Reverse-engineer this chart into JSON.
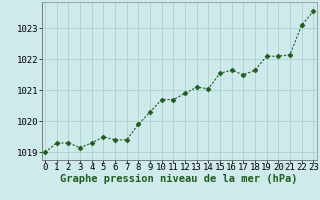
{
  "x": [
    0,
    1,
    2,
    3,
    4,
    5,
    6,
    7,
    8,
    9,
    10,
    11,
    12,
    13,
    14,
    15,
    16,
    17,
    18,
    19,
    20,
    21,
    22,
    23
  ],
  "y": [
    1019.0,
    1019.3,
    1019.3,
    1019.15,
    1019.3,
    1019.5,
    1019.4,
    1019.4,
    1019.9,
    1020.3,
    1020.7,
    1020.7,
    1020.9,
    1021.1,
    1021.05,
    1021.55,
    1021.65,
    1021.5,
    1021.65,
    1022.1,
    1022.1,
    1022.15,
    1023.1,
    1023.55
  ],
  "line_color": "#1f5c1f",
  "marker": "D",
  "marker_size": 2.5,
  "bg_color": "#ceeaea",
  "grid_color": "#aacccc",
  "xlabel": "Graphe pression niveau de la mer (hPa)",
  "xlabel_fontsize": 7.5,
  "ylabel_ticks": [
    1019,
    1020,
    1021,
    1022,
    1023
  ],
  "xlim": [
    -0.3,
    23.3
  ],
  "ylim": [
    1018.75,
    1023.85
  ],
  "tick_fontsize": 6.5,
  "label_color": "#1f5c1f"
}
